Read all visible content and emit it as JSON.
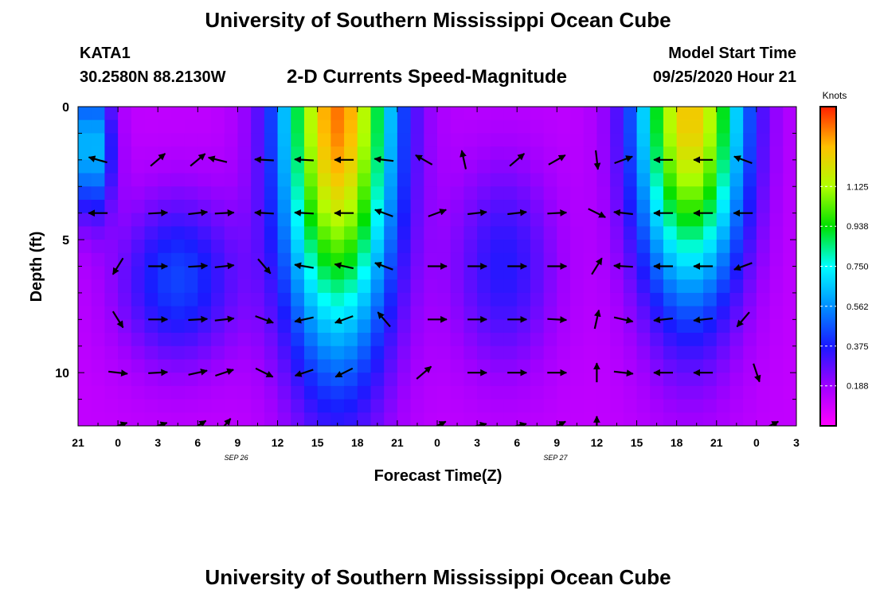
{
  "header": {
    "title": "University of Southern Mississippi Ocean Cube",
    "station": "KATA1",
    "coords": "30.2580N 88.2130W",
    "subtitle": "2-D Currents Speed-Magnitude",
    "model_start_label": "Model Start Time",
    "model_start_value": "09/25/2020 Hour 21"
  },
  "footer": {
    "title": "University of Southern Mississippi Ocean Cube"
  },
  "colors": {
    "arrow": "#000000",
    "background": "#ffffff"
  },
  "chart_data": {
    "type": "heatmap",
    "title": "2-D Currents Speed-Magnitude",
    "xlabel": "Forecast Time(Z)",
    "ylabel": "Depth (ft)",
    "x_range_hours": [
      0,
      54
    ],
    "x_tick_labels": [
      "21",
      "0",
      "3",
      "6",
      "9",
      "12",
      "15",
      "18",
      "21",
      "0",
      "3",
      "6",
      "9",
      "12",
      "15",
      "18",
      "21",
      "0",
      "3"
    ],
    "date_labels": [
      {
        "hour": 15,
        "text": "SEP 26"
      },
      {
        "hour": 39,
        "text": "SEP 27"
      }
    ],
    "y_range_ft": [
      0,
      12
    ],
    "y_tick_labels": [
      {
        "value": 0,
        "text": "0"
      },
      {
        "value": 5,
        "text": "5"
      },
      {
        "value": 10,
        "text": "10"
      }
    ],
    "colorbar": {
      "unit": "Knots",
      "min": 0,
      "max": 1.5,
      "tick_labels": [
        "0.188",
        "0.375",
        "0.562",
        "0.750",
        "0.938",
        "1.125"
      ]
    },
    "speed_model": {
      "description": "approximate speed (knots) as function of forecast hour and depth",
      "base": 0.12,
      "blobs": [
        {
          "center_hour": 19.5,
          "center_depth_ft": 0,
          "width_hours": 4.2,
          "depth_scale_ft": 9,
          "peak": 1.28
        },
        {
          "center_hour": 46.0,
          "center_depth_ft": 0,
          "width_hours": 4.0,
          "depth_scale_ft": 7,
          "peak": 1.18
        },
        {
          "center_hour": 7.5,
          "center_depth_ft": 6.5,
          "width_hours": 4.5,
          "depth_scale_ft": 3.2,
          "peak": 0.32
        },
        {
          "center_hour": 32.0,
          "center_depth_ft": 6.0,
          "width_hours": 4.0,
          "depth_scale_ft": 4.0,
          "peak": 0.24
        },
        {
          "center_hour": 1.0,
          "center_depth_ft": 1.5,
          "width_hours": 1.6,
          "depth_scale_ft": 2.5,
          "peak": 0.55
        }
      ]
    },
    "vectors": [
      {
        "hour": 1.5,
        "depth": 2,
        "u": -0.7,
        "v": 0.2
      },
      {
        "hour": 6,
        "depth": 2,
        "u": 0.7,
        "v": 0.6
      },
      {
        "hour": 9,
        "depth": 2,
        "u": 0.6,
        "v": 0.5
      },
      {
        "hour": 10.5,
        "depth": 2,
        "u": -0.8,
        "v": 0.2
      },
      {
        "hour": 14,
        "depth": 2,
        "u": -0.9,
        "v": 0.05
      },
      {
        "hour": 17,
        "depth": 2,
        "u": -0.9,
        "v": 0.05
      },
      {
        "hour": 20,
        "depth": 2,
        "u": -0.9,
        "v": 0.0
      },
      {
        "hour": 23,
        "depth": 2,
        "u": -0.9,
        "v": 0.1
      },
      {
        "hour": 26,
        "depth": 2,
        "u": -0.7,
        "v": 0.4
      },
      {
        "hour": 29,
        "depth": 2,
        "u": -0.2,
        "v": 0.9
      },
      {
        "hour": 33,
        "depth": 2,
        "u": 0.7,
        "v": 0.6
      },
      {
        "hour": 36,
        "depth": 2,
        "u": 0.7,
        "v": 0.4
      },
      {
        "hour": 39,
        "depth": 2,
        "u": 0.1,
        "v": -0.9
      },
      {
        "hour": 41,
        "depth": 2,
        "u": 0.8,
        "v": 0.3
      },
      {
        "hour": 44,
        "depth": 2,
        "u": -0.9,
        "v": 0.0
      },
      {
        "hour": 47,
        "depth": 2,
        "u": -0.9,
        "v": 0.0
      },
      {
        "hour": 50,
        "depth": 2,
        "u": -0.8,
        "v": 0.3
      },
      {
        "hour": 1.5,
        "depth": 4,
        "u": -0.9,
        "v": 0.0
      },
      {
        "hour": 6,
        "depth": 4,
        "u": 0.9,
        "v": 0.05
      },
      {
        "hour": 9,
        "depth": 4,
        "u": 0.9,
        "v": 0.1
      },
      {
        "hour": 11,
        "depth": 4,
        "u": 0.9,
        "v": 0.05
      },
      {
        "hour": 14,
        "depth": 4,
        "u": -0.9,
        "v": 0.05
      },
      {
        "hour": 17,
        "depth": 4,
        "u": -0.9,
        "v": 0.05
      },
      {
        "hour": 20,
        "depth": 4,
        "u": -0.9,
        "v": 0.0
      },
      {
        "hour": 23,
        "depth": 4,
        "u": -0.8,
        "v": 0.3
      },
      {
        "hour": 27,
        "depth": 4,
        "u": 0.8,
        "v": 0.3
      },
      {
        "hour": 30,
        "depth": 4,
        "u": 0.9,
        "v": 0.1
      },
      {
        "hour": 33,
        "depth": 4,
        "u": 0.9,
        "v": 0.1
      },
      {
        "hour": 36,
        "depth": 4,
        "u": 0.9,
        "v": 0.05
      },
      {
        "hour": 39,
        "depth": 4,
        "u": 0.8,
        "v": -0.4
      },
      {
        "hour": 41,
        "depth": 4,
        "u": -0.9,
        "v": 0.1
      },
      {
        "hour": 44,
        "depth": 4,
        "u": -0.9,
        "v": 0.0
      },
      {
        "hour": 47,
        "depth": 4,
        "u": -0.9,
        "v": 0.0
      },
      {
        "hour": 50,
        "depth": 4,
        "u": -0.9,
        "v": 0.0
      },
      {
        "hour": 3,
        "depth": 6,
        "u": -0.5,
        "v": -0.8
      },
      {
        "hour": 6,
        "depth": 6,
        "u": 0.9,
        "v": 0.0
      },
      {
        "hour": 9,
        "depth": 6,
        "u": 0.9,
        "v": 0.05
      },
      {
        "hour": 11,
        "depth": 6,
        "u": 0.9,
        "v": 0.1
      },
      {
        "hour": 14,
        "depth": 6,
        "u": 0.6,
        "v": -0.7
      },
      {
        "hour": 17,
        "depth": 6,
        "u": -0.9,
        "v": 0.15
      },
      {
        "hour": 20,
        "depth": 6,
        "u": -0.9,
        "v": 0.2
      },
      {
        "hour": 23,
        "depth": 6,
        "u": -0.8,
        "v": 0.3
      },
      {
        "hour": 27,
        "depth": 6,
        "u": 0.9,
        "v": 0.0
      },
      {
        "hour": 30,
        "depth": 6,
        "u": 0.9,
        "v": 0.0
      },
      {
        "hour": 33,
        "depth": 6,
        "u": 0.9,
        "v": 0.0
      },
      {
        "hour": 36,
        "depth": 6,
        "u": 0.9,
        "v": 0.0
      },
      {
        "hour": 39,
        "depth": 6,
        "u": 0.5,
        "v": 0.8
      },
      {
        "hour": 41,
        "depth": 6,
        "u": -0.9,
        "v": 0.05
      },
      {
        "hour": 44,
        "depth": 6,
        "u": -0.9,
        "v": 0.0
      },
      {
        "hour": 47,
        "depth": 6,
        "u": -0.9,
        "v": 0.0
      },
      {
        "hour": 50,
        "depth": 6,
        "u": -0.8,
        "v": -0.3
      },
      {
        "hour": 3,
        "depth": 8,
        "u": 0.5,
        "v": -0.8
      },
      {
        "hour": 6,
        "depth": 8,
        "u": 0.9,
        "v": 0.0
      },
      {
        "hour": 9,
        "depth": 8,
        "u": 0.9,
        "v": 0.05
      },
      {
        "hour": 11,
        "depth": 8,
        "u": 0.9,
        "v": 0.1
      },
      {
        "hour": 14,
        "depth": 8,
        "u": 0.8,
        "v": -0.3
      },
      {
        "hour": 17,
        "depth": 8,
        "u": -0.9,
        "v": -0.2
      },
      {
        "hour": 20,
        "depth": 8,
        "u": -0.8,
        "v": -0.3
      },
      {
        "hour": 23,
        "depth": 8,
        "u": -0.6,
        "v": 0.7
      },
      {
        "hour": 27,
        "depth": 8,
        "u": 0.9,
        "v": 0.0
      },
      {
        "hour": 30,
        "depth": 8,
        "u": 0.9,
        "v": 0.0
      },
      {
        "hour": 33,
        "depth": 8,
        "u": 0.9,
        "v": 0.0
      },
      {
        "hour": 36,
        "depth": 8,
        "u": 0.9,
        "v": -0.05
      },
      {
        "hour": 39,
        "depth": 8,
        "u": 0.2,
        "v": 0.9
      },
      {
        "hour": 41,
        "depth": 8,
        "u": 0.9,
        "v": -0.2
      },
      {
        "hour": 44,
        "depth": 8,
        "u": -0.9,
        "v": -0.1
      },
      {
        "hour": 47,
        "depth": 8,
        "u": -0.9,
        "v": -0.1
      },
      {
        "hour": 50,
        "depth": 8,
        "u": -0.6,
        "v": -0.7
      },
      {
        "hour": 3,
        "depth": 10,
        "u": 0.9,
        "v": -0.1
      },
      {
        "hour": 6,
        "depth": 10,
        "u": 0.9,
        "v": 0.05
      },
      {
        "hour": 9,
        "depth": 10,
        "u": 0.9,
        "v": 0.2
      },
      {
        "hour": 11,
        "depth": 10,
        "u": 0.9,
        "v": 0.3
      },
      {
        "hour": 14,
        "depth": 10,
        "u": 0.8,
        "v": -0.4
      },
      {
        "hour": 17,
        "depth": 10,
        "u": -0.9,
        "v": -0.3
      },
      {
        "hour": 20,
        "depth": 10,
        "u": -0.8,
        "v": -0.4
      },
      {
        "hour": 26,
        "depth": 10,
        "u": 0.7,
        "v": 0.6
      },
      {
        "hour": 30,
        "depth": 10,
        "u": 0.9,
        "v": 0.0
      },
      {
        "hour": 33,
        "depth": 10,
        "u": 0.9,
        "v": 0.0
      },
      {
        "hour": 36,
        "depth": 10,
        "u": 0.9,
        "v": 0.0
      },
      {
        "hour": 39,
        "depth": 10,
        "u": 0.0,
        "v": 0.9
      },
      {
        "hour": 41,
        "depth": 10,
        "u": 0.9,
        "v": -0.1
      },
      {
        "hour": 44,
        "depth": 10,
        "u": -0.9,
        "v": 0.0
      },
      {
        "hour": 47,
        "depth": 10,
        "u": -0.9,
        "v": 0.0
      },
      {
        "hour": 51,
        "depth": 10,
        "u": 0.3,
        "v": -0.9
      },
      {
        "hour": 3,
        "depth": 12,
        "u": 0.9,
        "v": 0.3
      },
      {
        "hour": 6,
        "depth": 12,
        "u": 0.9,
        "v": 0.3
      },
      {
        "hour": 9,
        "depth": 12,
        "u": 0.8,
        "v": 0.5
      },
      {
        "hour": 11,
        "depth": 12,
        "u": 0.6,
        "v": 0.7
      },
      {
        "hour": 27,
        "depth": 12,
        "u": 0.8,
        "v": 0.4
      },
      {
        "hour": 30,
        "depth": 12,
        "u": 0.9,
        "v": 0.2
      },
      {
        "hour": 33,
        "depth": 12,
        "u": 0.9,
        "v": 0.2
      },
      {
        "hour": 36,
        "depth": 12,
        "u": 0.8,
        "v": 0.4
      },
      {
        "hour": 39,
        "depth": 12,
        "u": 0.0,
        "v": 0.9
      },
      {
        "hour": 52,
        "depth": 12,
        "u": 0.8,
        "v": 0.4
      }
    ]
  }
}
